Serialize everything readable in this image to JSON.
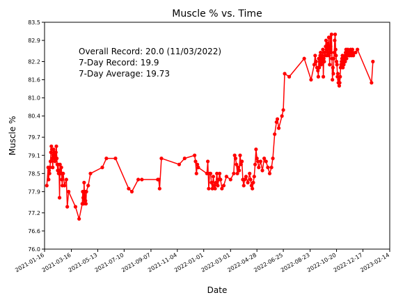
{
  "chart_data": {
    "type": "line",
    "title": "Muscle % vs. Time",
    "xlabel": "Date",
    "ylabel": "Muscle %",
    "xlim": [
      "2021-01-16",
      "2023-02-14"
    ],
    "ylim": [
      76.0,
      83.5
    ],
    "x_ticks": [
      "2021-01-16",
      "2021-03-16",
      "2021-05-13",
      "2021-07-10",
      "2021-09-07",
      "2021-11-04",
      "2022-01-01",
      "2022-03-01",
      "2022-04-28",
      "2022-06-25",
      "2022-08-23",
      "2022-10-20",
      "2022-12-17",
      "2023-02-14"
    ],
    "y_ticks": [
      "76.0",
      "76.6",
      "77.2",
      "77.9",
      "78.5",
      "79.1",
      "79.7",
      "80.4",
      "81.0",
      "81.6",
      "82.2",
      "82.9",
      "83.5"
    ],
    "annotations": [
      "Overall Record: 20.0 (11/03/2022)",
      "7-Day Record: 19.9",
      "7-Day Average: 19.73"
    ],
    "grid": false,
    "series_color": "#ff0000",
    "series": [
      {
        "x": [
          "2021-01-21",
          "2021-01-24",
          "2021-01-25",
          "2021-01-26",
          "2021-01-27",
          "2021-01-28",
          "2021-01-29",
          "2021-01-30",
          "2021-01-31",
          "2021-02-01",
          "2021-02-02",
          "2021-02-03",
          "2021-02-04",
          "2021-02-05",
          "2021-02-06",
          "2021-02-07",
          "2021-02-08",
          "2021-02-09",
          "2021-02-10",
          "2021-02-11",
          "2021-02-12",
          "2021-02-13",
          "2021-02-14",
          "2021-02-15",
          "2021-02-16",
          "2021-02-17",
          "2021-02-18",
          "2021-02-19",
          "2021-02-20",
          "2021-02-21",
          "2021-02-22",
          "2021-02-23",
          "2021-02-24",
          "2021-02-25",
          "2021-02-26",
          "2021-03-01",
          "2021-03-05",
          "2021-03-07",
          "2021-03-10",
          "2021-03-25",
          "2021-04-02",
          "2021-04-09",
          "2021-04-10",
          "2021-04-11",
          "2021-04-12",
          "2021-04-13",
          "2021-04-14",
          "2021-04-15",
          "2021-04-16",
          "2021-04-17",
          "2021-04-18",
          "2021-04-22",
          "2021-04-27",
          "2021-05-23",
          "2021-06-01",
          "2021-06-21",
          "2021-07-20",
          "2021-07-27",
          "2021-08-10",
          "2021-08-18",
          "2021-09-22",
          "2021-09-24",
          "2021-09-26",
          "2021-09-30",
          "2021-11-08",
          "2021-11-20",
          "2021-12-12",
          "2021-12-14",
          "2021-12-16",
          "2021-12-18",
          "2021-12-20",
          "2022-01-08",
          "2022-01-10",
          "2022-01-12",
          "2022-01-14",
          "2022-01-16",
          "2022-01-18",
          "2022-01-20",
          "2022-01-22",
          "2022-01-24",
          "2022-01-26",
          "2022-01-28",
          "2022-01-30",
          "2022-02-01",
          "2022-02-03",
          "2022-02-05",
          "2022-02-07",
          "2022-02-10",
          "2022-02-14",
          "2022-02-20",
          "2022-03-01",
          "2022-03-08",
          "2022-03-10",
          "2022-03-12",
          "2022-03-14",
          "2022-03-16",
          "2022-03-18",
          "2022-03-20",
          "2022-03-22",
          "2022-03-24",
          "2022-03-26",
          "2022-03-28",
          "2022-03-30",
          "2022-04-01",
          "2022-04-04",
          "2022-04-08",
          "2022-04-12",
          "2022-04-14",
          "2022-04-16",
          "2022-04-18",
          "2022-04-20",
          "2022-04-22",
          "2022-04-24",
          "2022-04-26",
          "2022-04-28",
          "2022-04-30",
          "2022-05-02",
          "2022-05-06",
          "2022-05-10",
          "2022-05-14",
          "2022-05-18",
          "2022-05-22",
          "2022-05-26",
          "2022-05-30",
          "2022-06-02",
          "2022-06-06",
          "2022-06-10",
          "2022-06-12",
          "2022-06-15",
          "2022-06-22",
          "2022-06-25",
          "2022-06-28",
          "2022-07-08",
          "2022-08-10",
          "2022-08-25",
          "2022-09-01",
          "2022-09-03",
          "2022-09-05",
          "2022-09-07",
          "2022-09-09",
          "2022-09-10",
          "2022-09-11",
          "2022-09-12",
          "2022-09-13",
          "2022-09-14",
          "2022-09-15",
          "2022-09-16",
          "2022-09-17",
          "2022-09-18",
          "2022-09-19",
          "2022-09-20",
          "2022-09-21",
          "2022-09-22",
          "2022-09-23",
          "2022-09-24",
          "2022-09-25",
          "2022-09-26",
          "2022-09-27",
          "2022-09-28",
          "2022-09-29",
          "2022-09-30",
          "2022-10-01",
          "2022-10-02",
          "2022-10-03",
          "2022-10-04",
          "2022-10-05",
          "2022-10-06",
          "2022-10-07",
          "2022-10-08",
          "2022-10-09",
          "2022-10-10",
          "2022-10-11",
          "2022-10-12",
          "2022-10-13",
          "2022-10-14",
          "2022-10-15",
          "2022-10-16",
          "2022-10-17",
          "2022-10-18",
          "2022-10-19",
          "2022-10-20",
          "2022-10-21",
          "2022-10-22",
          "2022-10-23",
          "2022-10-24",
          "2022-10-25",
          "2022-10-26",
          "2022-10-27",
          "2022-10-28",
          "2022-10-29",
          "2022-10-30",
          "2022-10-31",
          "2022-11-01",
          "2022-11-02",
          "2022-11-03",
          "2022-11-04",
          "2022-11-05",
          "2022-11-06",
          "2022-11-07",
          "2022-11-08",
          "2022-11-09",
          "2022-11-10",
          "2022-11-11",
          "2022-11-12",
          "2022-11-13",
          "2022-11-14",
          "2022-11-15",
          "2022-11-16",
          "2022-11-17",
          "2022-11-18",
          "2022-11-19",
          "2022-11-20",
          "2022-11-21",
          "2022-11-22",
          "2022-11-23",
          "2022-11-24",
          "2022-11-25",
          "2022-11-26",
          "2022-12-01",
          "2022-12-05",
          "2023-01-05",
          "2023-01-08"
        ],
        "y": [
          78.1,
          78.7,
          78.3,
          78.6,
          78.5,
          78.7,
          78.9,
          79.2,
          79.4,
          79.3,
          79.0,
          78.7,
          79.1,
          79.3,
          79.2,
          79.0,
          78.9,
          79.1,
          79.2,
          79.4,
          79.0,
          78.8,
          78.6,
          78.8,
          78.5,
          78.6,
          77.7,
          78.8,
          78.5,
          78.5,
          78.7,
          78.3,
          78.1,
          78.5,
          78.5,
          78.1,
          78.3,
          77.4,
          77.9,
          77.4,
          77.0,
          77.5,
          77.9,
          77.7,
          77.5,
          78.2,
          77.7,
          77.9,
          77.6,
          77.5,
          77.9,
          78.1,
          78.5,
          78.7,
          79.0,
          79.0,
          78.0,
          77.9,
          78.3,
          78.3,
          78.3,
          78.3,
          78.0,
          79.0,
          78.8,
          79.0,
          79.1,
          78.9,
          78.5,
          78.8,
          78.7,
          78.5,
          78.9,
          78.0,
          78.5,
          78.5,
          78.2,
          78.0,
          78.4,
          78.1,
          78.0,
          78.2,
          78.5,
          78.1,
          78.3,
          78.5,
          78.3,
          78.0,
          78.1,
          78.4,
          78.3,
          78.5,
          79.1,
          79.0,
          78.8,
          78.5,
          78.7,
          78.6,
          79.1,
          78.8,
          78.9,
          78.3,
          78.1,
          78.3,
          78.4,
          78.2,
          78.5,
          78.3,
          78.1,
          78.0,
          78.2,
          78.4,
          78.8,
          79.3,
          79.0,
          78.9,
          78.7,
          78.9,
          78.6,
          79.0,
          78.9,
          78.7,
          78.5,
          78.7,
          79.0,
          79.8,
          80.2,
          80.3,
          80.0,
          80.4,
          80.6,
          81.8,
          81.7,
          82.3,
          81.6,
          82.1,
          82.4,
          82.2,
          82.0,
          81.9,
          81.7,
          82.3,
          82.0,
          82.2,
          82.4,
          82.5,
          82.1,
          82.3,
          82.4,
          82.2,
          82.6,
          81.7,
          82.3,
          82.2,
          82.5,
          82.4,
          82.7,
          82.9,
          82.6,
          82.4,
          82.8,
          82.5,
          82.7,
          83.0,
          82.4,
          82.1,
          83.0,
          82.7,
          82.5,
          83.1,
          82.3,
          81.6,
          82.0,
          81.8,
          82.3,
          82.5,
          82.9,
          83.1,
          82.6,
          82.4,
          82.2,
          82.1,
          81.7,
          81.8,
          81.5,
          81.6,
          81.4,
          81.5,
          81.7,
          82.0,
          82.1,
          82.2,
          82.3,
          82.4,
          82.0,
          82.2,
          82.1,
          82.3,
          82.4,
          82.2,
          82.5,
          82.6,
          82.3,
          82.4,
          82.5,
          82.6,
          82.5,
          82.4,
          82.5,
          82.4,
          82.5,
          82.6,
          82.5,
          82.4,
          82.5,
          82.6,
          82.5,
          82.4,
          82.5,
          82.6,
          81.5,
          82.2
        ]
      }
    ]
  }
}
